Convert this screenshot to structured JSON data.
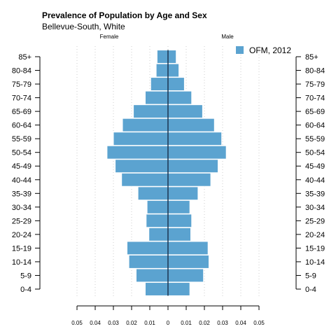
{
  "chart_data": {
    "type": "bar",
    "orientation": "horizontal-pyramid",
    "title": "Prevalence of Population by Age and Sex",
    "subtitle": "Bellevue-South, White",
    "left_label": "Female",
    "right_label": "Male",
    "categories": [
      "0-4",
      "5-9",
      "10-14",
      "15-19",
      "20-24",
      "25-29",
      "30-34",
      "35-39",
      "40-44",
      "45-49",
      "50-54",
      "55-59",
      "60-64",
      "65-69",
      "70-74",
      "75-79",
      "80-84",
      "85+"
    ],
    "series": [
      {
        "name": "Female",
        "values": [
          0.0125,
          0.0175,
          0.0215,
          0.0225,
          0.0105,
          0.012,
          0.0115,
          0.0165,
          0.0255,
          0.029,
          0.0335,
          0.03,
          0.025,
          0.019,
          0.0125,
          0.0095,
          0.0065,
          0.006
        ]
      },
      {
        "name": "Male",
        "values": [
          0.012,
          0.0195,
          0.0225,
          0.022,
          0.0125,
          0.013,
          0.012,
          0.0165,
          0.0235,
          0.0275,
          0.032,
          0.0295,
          0.0255,
          0.019,
          0.013,
          0.009,
          0.006,
          0.0045
        ]
      }
    ],
    "xticks": [
      -0.05,
      -0.04,
      -0.03,
      -0.02,
      -0.01,
      0,
      0.01,
      0.02,
      0.03,
      0.04,
      0.05
    ],
    "xtick_labels": [
      "0.05",
      "0.04",
      "0.03",
      "0.02",
      "0.01",
      "0",
      "0.01",
      "0.02",
      "0.03",
      "0.04",
      "0.05"
    ],
    "xlim": [
      -0.05,
      0.05
    ],
    "legend": {
      "label": "OFM, 2012",
      "placement": "top-right"
    },
    "grid": true,
    "colors": {
      "bar": "#5ba3d0",
      "bar_edge": "#ffffff",
      "center_line": "#1a3550",
      "grid": "#cccccc"
    }
  }
}
